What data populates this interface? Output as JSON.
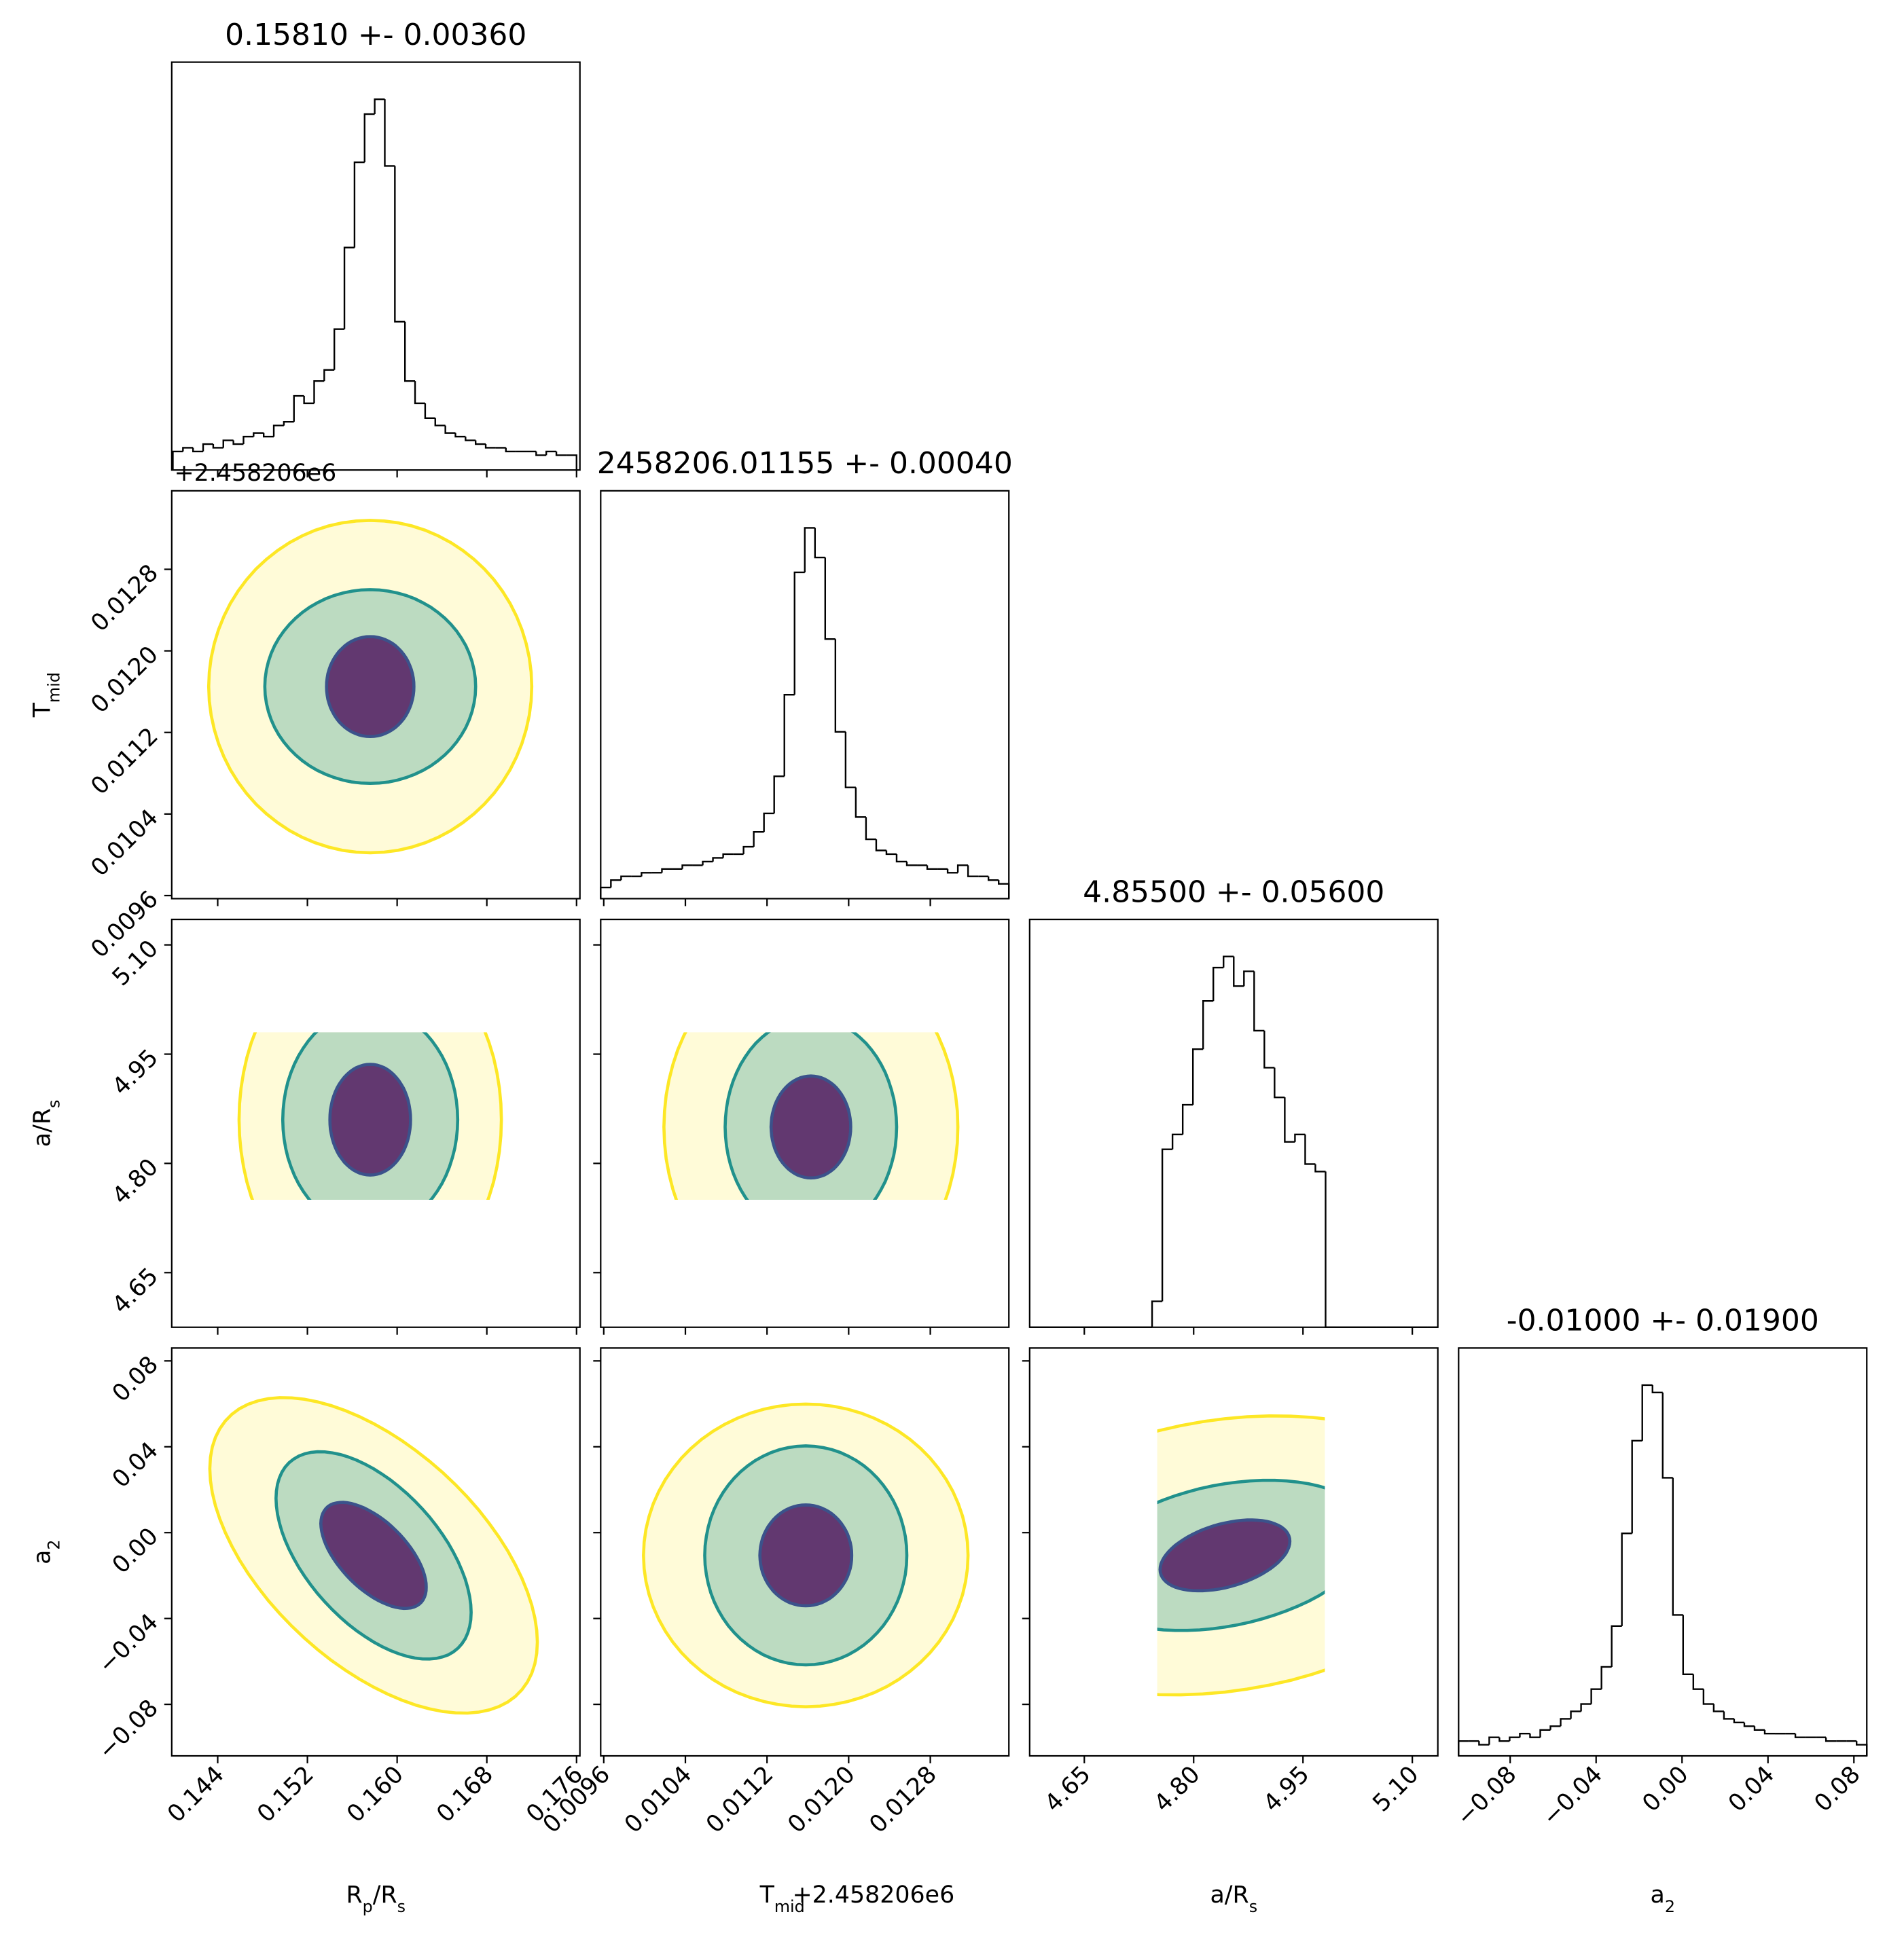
{
  "chart_data": {
    "type": "corner",
    "parameters": [
      {
        "label": [
          "R",
          "p",
          "/R",
          "s"
        ],
        "title": "0.15810 +- 0.00360",
        "lim": [
          0.1399,
          0.1763
        ],
        "ticks": [
          0.144,
          0.152,
          {
            "value": 0.16,
            "label": "0.160"
          },
          0.168,
          0.176
        ]
      },
      {
        "label": [
          "T",
          "mid"
        ],
        "title": "2458206.01155 +- 0.00040",
        "offset": "+2.458206e6",
        "lim": [
          0.00957,
          0.01357
        ],
        "ticks": [
          0.0096,
          0.0104,
          0.0112,
          {
            "value": 0.012,
            "label": "0.0120"
          },
          0.0128
        ]
      },
      {
        "label": [
          "a/R",
          "s"
        ],
        "title": "4.85500 +- 0.05600",
        "lim": [
          4.575,
          5.135
        ],
        "support": [
          4.75,
          4.98
        ],
        "ticks": [
          4.65,
          {
            "value": 4.8,
            "label": "4.80"
          },
          4.95,
          {
            "value": 5.1,
            "label": "5.10"
          }
        ]
      },
      {
        "label": [
          "a",
          "2"
        ],
        "title": "-0.01000 +- 0.01900",
        "lim": [
          -0.104,
          0.086
        ],
        "ticks": [
          {
            "value": -0.08,
            "label": "−0.08"
          },
          {
            "value": -0.04,
            "label": "−0.04"
          },
          {
            "value": 0,
            "label": "0.00"
          },
          0.04,
          0.08
        ]
      }
    ],
    "diagonal": [
      {
        "type": "histogram",
        "color": "#000000",
        "ylim": [
          0,
          110
        ],
        "bins": [
          0.14,
          0.1409,
          0.1418,
          0.1427,
          0.1436,
          0.1445,
          0.1454,
          0.1463,
          0.1472,
          0.1481,
          0.149,
          0.1499,
          0.1508,
          0.1517,
          0.1526,
          0.1535,
          0.1544,
          0.1553,
          0.1562,
          0.1571,
          0.158,
          0.1589,
          0.1598,
          0.1607,
          0.1616,
          0.1625,
          0.1634,
          0.1643,
          0.1652,
          0.1661,
          0.167,
          0.1679,
          0.1688,
          0.1697,
          0.1706,
          0.1715,
          0.1724,
          0.1733,
          0.1742,
          0.1751,
          0.176
        ],
        "values": [
          5,
          6,
          5,
          7,
          6,
          8,
          7,
          9,
          10,
          9,
          12,
          13,
          20,
          18,
          24,
          27,
          38,
          60,
          83,
          96,
          100,
          82,
          40,
          24,
          18,
          14,
          12,
          10,
          9,
          8,
          7,
          6,
          6,
          5,
          5,
          5,
          4,
          5,
          4,
          4
        ]
      },
      {
        "type": "histogram",
        "color": "#000000",
        "ylim": [
          0,
          110
        ],
        "bins": [
          0.00957,
          0.00967,
          0.00977,
          0.00987,
          0.00997,
          0.01007,
          0.01017,
          0.01027,
          0.01037,
          0.01047,
          0.01057,
          0.01067,
          0.01077,
          0.01087,
          0.01097,
          0.01107,
          0.01117,
          0.01127,
          0.01137,
          0.01147,
          0.01157,
          0.01167,
          0.01177,
          0.01187,
          0.01197,
          0.01207,
          0.01217,
          0.01227,
          0.01237,
          0.01247,
          0.01257,
          0.01267,
          0.01277,
          0.01287,
          0.01297,
          0.01307,
          0.01317,
          0.01327,
          0.01337,
          0.01347,
          0.01357
        ],
        "values": [
          3,
          5,
          6,
          6,
          7,
          7,
          8,
          8,
          9,
          9,
          10,
          11,
          12,
          12,
          14,
          18,
          23,
          33,
          55,
          88,
          100,
          92,
          70,
          45,
          30,
          22,
          16,
          13,
          12,
          10,
          9,
          9,
          8,
          8,
          7,
          9,
          6,
          6,
          5,
          4
        ]
      },
      {
        "type": "histogram",
        "color": "#000000",
        "ylim": [
          0,
          110
        ],
        "bins": [
          4.575,
          4.589,
          4.603,
          4.617,
          4.631,
          4.645,
          4.659,
          4.673,
          4.687,
          4.701,
          4.715,
          4.729,
          4.743,
          4.757,
          4.771,
          4.785,
          4.799,
          4.813,
          4.827,
          4.841,
          4.855,
          4.869,
          4.883,
          4.897,
          4.911,
          4.925,
          4.939,
          4.953,
          4.967,
          4.981,
          4.995,
          5.009,
          5.023,
          5.037,
          5.051,
          5.065,
          5.079,
          5.093,
          5.107,
          5.121,
          5.135
        ],
        "values": [
          0,
          0,
          0,
          0,
          0,
          0,
          0,
          0,
          0,
          0,
          0,
          0,
          7,
          48,
          52,
          60,
          75,
          88,
          97,
          100,
          92,
          96,
          80,
          70,
          62,
          50,
          52,
          44,
          42,
          0,
          0,
          0,
          0,
          0,
          0,
          0,
          0,
          0,
          0,
          0
        ]
      },
      {
        "type": "histogram",
        "color": "#000000",
        "ylim": [
          0,
          110
        ],
        "bins": [
          -0.104,
          -0.09925,
          -0.0945,
          -0.08975,
          -0.085,
          -0.08025,
          -0.0755,
          -0.07075,
          -0.066,
          -0.06125,
          -0.0565,
          -0.05175,
          -0.047,
          -0.04225,
          -0.0375,
          -0.03275,
          -0.028,
          -0.02325,
          -0.0185,
          -0.01375,
          -0.009,
          -0.00425,
          0.0005,
          0.00525,
          0.01,
          0.01475,
          0.0195,
          0.02425,
          0.029,
          0.03375,
          0.0385,
          0.04325,
          0.048,
          0.05275,
          0.0575,
          0.06225,
          0.067,
          0.07175,
          0.0765,
          0.08125,
          0.086
        ],
        "values": [
          4,
          4,
          3,
          5,
          4,
          5,
          6,
          5,
          7,
          8,
          10,
          12,
          14,
          18,
          24,
          35,
          60,
          85,
          100,
          98,
          75,
          38,
          22,
          18,
          14,
          12,
          10,
          9,
          8,
          7,
          6,
          6,
          6,
          5,
          5,
          5,
          4,
          4,
          4,
          3
        ]
      }
    ],
    "pairs": [
      {
        "type": "contour",
        "levels": [
          {
            "color": "#fde725",
            "point_color": "#fde725",
            "cx": 0.1576,
            "cy": 0.01165,
            "sx": 0.0144,
            "sy": 0.00163,
            "rho": 0
          },
          {
            "color": "#21918c",
            "point_color": "#21918c",
            "cx": 0.1576,
            "cy": 0.01165,
            "sx": 0.0094,
            "sy": 0.00095,
            "rho": 0
          },
          {
            "color": "#3b528b",
            "point_color": "#440154",
            "cx": 0.1576,
            "cy": 0.01165,
            "sx": 0.0039,
            "sy": 0.00049,
            "rho": 0
          }
        ]
      },
      {
        "type": "contour",
        "levels": [
          {
            "color": "#fde725",
            "point_color": "#fde725",
            "cx": 0.1576,
            "cy": 4.86,
            "sx": 0.0117,
            "sy": 0.25,
            "rho": 0
          },
          {
            "color": "#21918c",
            "point_color": "#21918c",
            "cx": 0.1576,
            "cy": 4.86,
            "sx": 0.0078,
            "sy": 0.153,
            "rho": 0
          },
          {
            "color": "#3b528b",
            "point_color": "#440154",
            "cx": 0.1576,
            "cy": 4.86,
            "sx": 0.0036,
            "sy": 0.076,
            "rho": 0
          }
        ]
      },
      {
        "type": "contour",
        "levels": [
          {
            "color": "#fde725",
            "point_color": "#fde725",
            "cx": 0.01163,
            "cy": 4.85,
            "sx": 0.00144,
            "sy": 0.25,
            "rho": 0
          },
          {
            "color": "#21918c",
            "point_color": "#21918c",
            "cx": 0.01163,
            "cy": 4.85,
            "sx": 0.00084,
            "sy": 0.15,
            "rho": 0
          },
          {
            "color": "#3b528b",
            "point_color": "#440154",
            "cx": 0.01163,
            "cy": 4.85,
            "sx": 0.00039,
            "sy": 0.07,
            "rho": 0
          }
        ]
      },
      {
        "type": "contour",
        "levels": [
          {
            "color": "#fde725",
            "point_color": "#fde725",
            "cx": 0.1579,
            "cy": -0.0106,
            "sx": 0.0146,
            "sy": 0.0735,
            "rho": -0.55
          },
          {
            "color": "#21918c",
            "point_color": "#21918c",
            "cx": 0.1579,
            "cy": -0.0106,
            "sx": 0.0087,
            "sy": 0.0483,
            "rho": -0.55
          },
          {
            "color": "#3b528b",
            "point_color": "#440154",
            "cx": 0.1579,
            "cy": -0.0106,
            "sx": 0.0047,
            "sy": 0.0247,
            "rho": -0.6
          }
        ]
      },
      {
        "type": "contour",
        "levels": [
          {
            "color": "#fde725",
            "point_color": "#fde725",
            "cx": 0.01158,
            "cy": -0.0106,
            "sx": 0.00159,
            "sy": 0.0705,
            "rho": 0
          },
          {
            "color": "#21918c",
            "point_color": "#21918c",
            "cx": 0.01158,
            "cy": -0.0106,
            "sx": 0.00099,
            "sy": 0.051,
            "rho": 0
          },
          {
            "color": "#3b528b",
            "point_color": "#440154",
            "cx": 0.01158,
            "cy": -0.0106,
            "sx": 0.00045,
            "sy": 0.0235,
            "rho": 0
          }
        ]
      },
      {
        "type": "contour",
        "levels": [
          {
            "color": "#fde725",
            "point_color": "#fde725",
            "cx": 4.843,
            "cy": -0.0106,
            "sx": 0.35,
            "sy": 0.065,
            "rho": 0.2
          },
          {
            "color": "#21918c",
            "point_color": "#21918c",
            "cx": 4.843,
            "cy": -0.0106,
            "sx": 0.2,
            "sy": 0.035,
            "rho": 0.3
          },
          {
            "color": "#3b528b",
            "point_color": "#440154",
            "cx": 4.843,
            "cy": -0.0106,
            "sx": 0.089,
            "sy": 0.0165,
            "rho": 0.4
          }
        ]
      }
    ]
  }
}
